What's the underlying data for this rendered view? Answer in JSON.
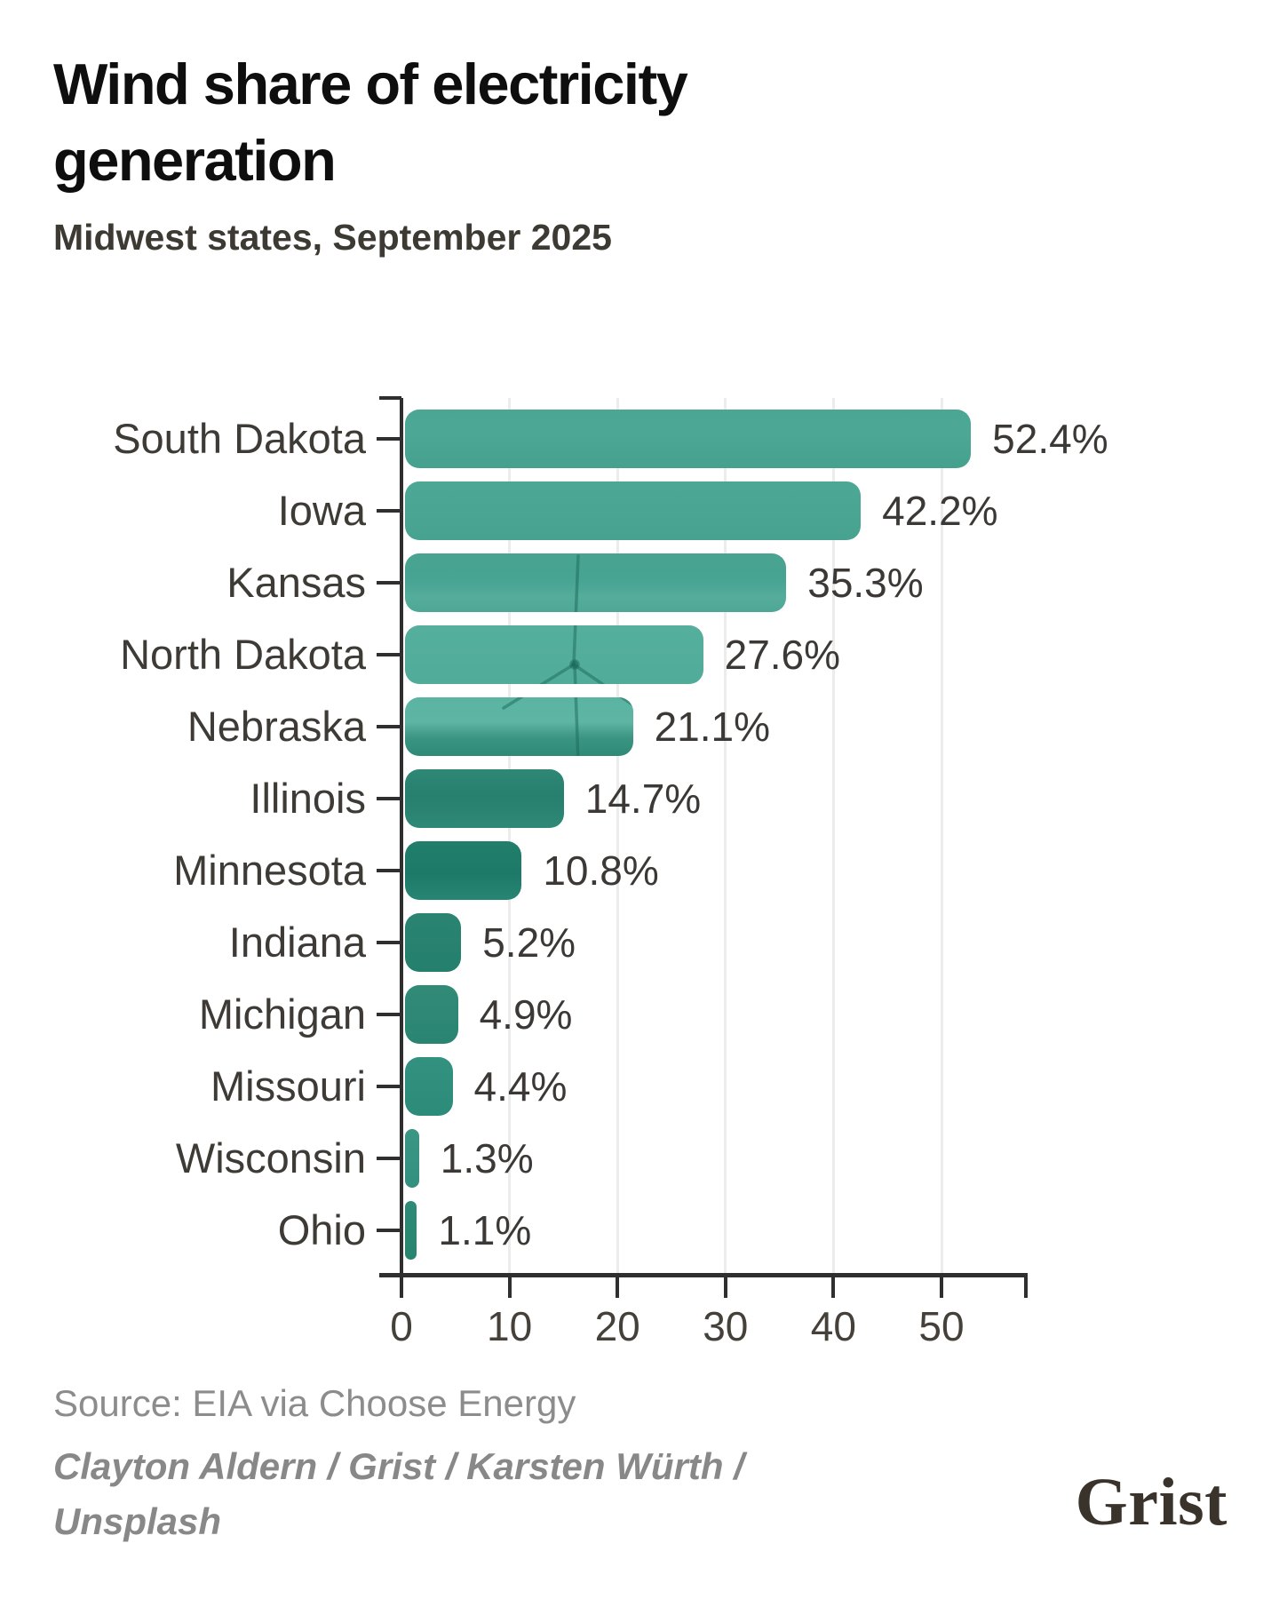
{
  "header": {
    "title": "Wind share of electricity generation",
    "subtitle": "Midwest states, September 2025"
  },
  "chart_data": {
    "type": "bar",
    "orientation": "horizontal",
    "title": "Wind share of electricity generation",
    "subtitle": "Midwest states, September 2025",
    "categories": [
      "South Dakota",
      "Iowa",
      "Kansas",
      "North Dakota",
      "Nebraska",
      "Illinois",
      "Minnesota",
      "Indiana",
      "Michigan",
      "Missouri",
      "Wisconsin",
      "Ohio"
    ],
    "values": [
      52.4,
      42.2,
      35.3,
      27.6,
      21.1,
      14.7,
      10.8,
      5.2,
      4.9,
      4.4,
      1.3,
      1.1
    ],
    "value_labels": [
      "52.4%",
      "42.2%",
      "35.3%",
      "27.6%",
      "21.1%",
      "14.7%",
      "10.8%",
      "5.2%",
      "4.9%",
      "4.4%",
      "1.3%",
      "1.1%"
    ],
    "x_ticks": [
      0,
      10,
      20,
      30,
      40,
      50
    ],
    "xlim": [
      0,
      58
    ],
    "xlabel": "",
    "ylabel": "",
    "grid": "vertical-light",
    "legend": "none",
    "bar_gradients": [
      [
        "#4BA794 0%",
        "#4CA895 45%",
        "#45A18D 100%"
      ],
      [
        "#4CA895 0%",
        "#4AA592 55%",
        "#47A28F 100%"
      ],
      [
        "#48A390 0%",
        "#47A392 45%",
        "#55AC9B 75%",
        "#4EA794 100%"
      ],
      [
        "#55AF9C 0%",
        "#53AD9B 60%",
        "#50AB98 100%"
      ],
      [
        "#5BB3A1 0%",
        "#5EB5A3 42%",
        "#3A9481 70%",
        "#2E8A77 100%"
      ],
      [
        "#2E8875 0%",
        "#277F6D 45%",
        "#2E8976 100%"
      ],
      [
        "#217E6B 0%",
        "#1E7A68 55%",
        "#278573 100%"
      ],
      [
        "#2A8471 0%",
        "#257F6D 100%"
      ],
      [
        "#308A77 0%",
        "#2E8875 50%",
        "#298471 100%"
      ],
      [
        "#339180 0%",
        "#2C8B79 100%"
      ],
      [
        "#3B9684 0%",
        "#339080 100%"
      ],
      [
        "#2E8A76 0%",
        "#27856F 100%"
      ]
    ],
    "colors": {
      "axis": "#2f2f2f",
      "grid": "#ececec",
      "state_label": "#3e3b37",
      "value_label": "#3b3835",
      "turbine_line": "#196957"
    }
  },
  "footer": {
    "source": "Source: EIA via Choose Energy",
    "credit_lines": [
      "Clayton Aldern / Grist / Karsten Würth /",
      "Unsplash"
    ],
    "logo": "Grist"
  }
}
